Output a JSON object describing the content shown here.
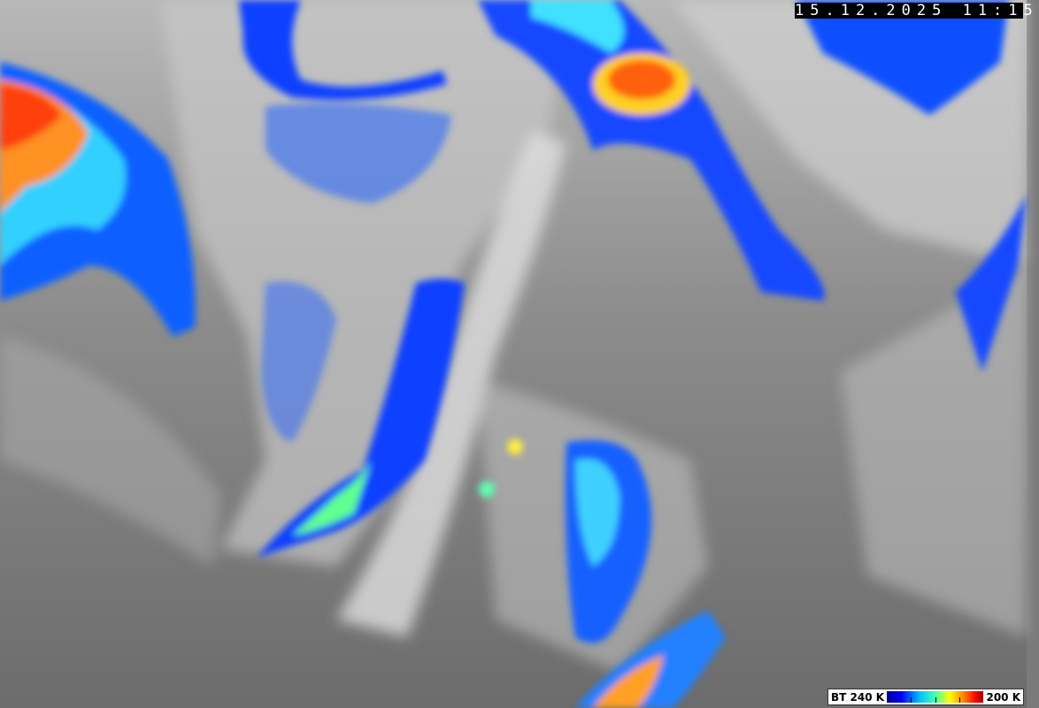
{
  "timestamp": "15.12.2025 11:15",
  "legend": {
    "left_label": "BT 240 K",
    "right_label": "200 K",
    "colors": [
      "#00008c",
      "#0000ff",
      "#00c8ff",
      "#40ffb0",
      "#ffff00",
      "#ff8000",
      "#ff0000",
      "#a00000"
    ]
  },
  "imagery": {
    "type": "infrared satellite image",
    "background": "#7a7a7a"
  }
}
